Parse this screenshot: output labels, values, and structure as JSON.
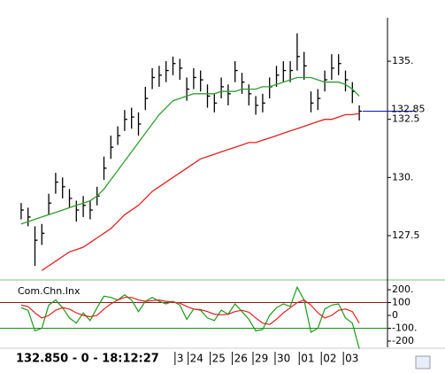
{
  "chart_data": [
    {
      "type": "hlc",
      "bars": {
        "color": "#000000",
        "high": [
          128.9,
          128.7,
          127.9,
          128.0,
          129.3,
          130.2,
          130.0,
          129.5,
          129.0,
          129.2,
          129.0,
          129.6,
          130.9,
          131.8,
          132.2,
          132.9,
          133.0,
          132.8,
          133.9,
          134.7,
          134.8,
          135.0,
          135.2,
          135.1,
          134.3,
          134.7,
          134.6,
          134.0,
          133.6,
          134.3,
          134.0,
          135.0,
          134.5,
          134.0,
          133.5,
          133.6,
          134.3,
          134.8,
          135.0,
          135.0,
          136.2,
          135.4,
          133.7,
          133.8,
          134.6,
          135.3,
          135.3,
          134.6,
          134.1,
          133.1
        ],
        "low": [
          128.2,
          127.9,
          126.2,
          127.1,
          128.4,
          129.3,
          129.1,
          128.7,
          128.1,
          128.3,
          128.2,
          128.8,
          129.9,
          130.8,
          131.4,
          132.0,
          132.1,
          131.8,
          132.9,
          133.8,
          133.9,
          134.1,
          134.4,
          134.2,
          133.3,
          133.8,
          133.7,
          133.0,
          132.8,
          133.4,
          133.1,
          134.1,
          133.6,
          133.1,
          132.7,
          132.8,
          133.4,
          133.9,
          134.1,
          134.1,
          134.6,
          134.2,
          132.8,
          132.9,
          133.7,
          134.2,
          134.4,
          133.7,
          133.2,
          132.45
        ],
        "close": [
          128.6,
          128.3,
          127.3,
          127.6,
          128.9,
          129.8,
          129.6,
          129.1,
          128.6,
          128.8,
          128.6,
          129.2,
          130.4,
          131.3,
          131.8,
          132.5,
          132.6,
          132.3,
          133.4,
          134.3,
          134.4,
          134.6,
          134.9,
          134.7,
          133.8,
          134.3,
          134.2,
          133.5,
          133.2,
          133.9,
          133.6,
          134.6,
          134.1,
          133.6,
          133.1,
          133.2,
          133.9,
          134.4,
          134.6,
          134.6,
          135.2,
          134.8,
          133.2,
          133.4,
          134.2,
          134.7,
          134.9,
          134.2,
          133.7,
          132.85
        ]
      },
      "lines": [
        {
          "color": "#2e9e2e",
          "values": [
            128.0,
            128.1,
            128.2,
            128.3,
            128.4,
            128.5,
            128.6,
            128.7,
            128.8,
            128.9,
            129.0,
            129.2,
            129.5,
            129.9,
            130.3,
            130.7,
            131.1,
            131.5,
            131.9,
            132.3,
            132.7,
            133.0,
            133.3,
            133.4,
            133.5,
            133.6,
            133.6,
            133.6,
            133.6,
            133.7,
            133.7,
            133.7,
            133.8,
            133.8,
            133.8,
            133.9,
            133.9,
            134.0,
            134.1,
            134.2,
            134.3,
            134.3,
            134.3,
            134.2,
            134.1,
            134.1,
            134.1,
            134.0,
            133.8,
            133.5
          ]
        },
        {
          "color": "#e02020",
          "values": [
            null,
            null,
            null,
            126.0,
            126.2,
            126.4,
            126.6,
            126.8,
            126.9,
            127.0,
            127.2,
            127.4,
            127.6,
            127.8,
            128.1,
            128.4,
            128.6,
            128.8,
            129.1,
            129.4,
            129.6,
            129.8,
            130.0,
            130.2,
            130.4,
            130.6,
            130.8,
            130.9,
            131.0,
            131.1,
            131.2,
            131.3,
            131.4,
            131.5,
            131.5,
            131.6,
            131.7,
            131.8,
            131.9,
            132.0,
            132.1,
            132.2,
            132.3,
            132.4,
            132.5,
            132.5,
            132.6,
            132.7,
            132.7,
            132.75
          ]
        }
      ],
      "ylim": [
        125.63,
        136.87
      ],
      "yticks": [
        {
          "value": 135,
          "label": "135."
        },
        132.5,
        {
          "value": 130,
          "label": "130."
        },
        127.5
      ],
      "last_price": {
        "value": 132.85,
        "label": "132.85",
        "color": "#1010c0"
      },
      "xlim": [
        0,
        50
      ],
      "xticks": [
        {
          "value": 23.7,
          "label": "3"
        },
        {
          "value": 25.6,
          "label": "24"
        },
        {
          "value": 28.8,
          "label": "25"
        },
        {
          "value": 32,
          "label": "26"
        },
        {
          "value": 35,
          "label": "29"
        },
        {
          "value": 38.2,
          "label": "30"
        },
        {
          "value": 41.7,
          "label": "01"
        },
        {
          "value": 44.9,
          "label": "02"
        },
        {
          "value": 48.1,
          "label": "03"
        }
      ]
    },
    {
      "type": "line",
      "title": "Com.Chn.Inx",
      "series": [
        {
          "color": "#1a9a1a",
          "values": [
            60,
            40,
            -120,
            -100,
            80,
            120,
            60,
            -20,
            -60,
            20,
            -40,
            60,
            150,
            140,
            120,
            160,
            120,
            30,
            110,
            140,
            110,
            90,
            110,
            80,
            -30,
            50,
            40,
            -20,
            -40,
            40,
            10,
            90,
            30,
            -30,
            -120,
            -110,
            0,
            60,
            90,
            70,
            220,
            120,
            -130,
            -100,
            50,
            80,
            90,
            -20,
            -60,
            -260
          ]
        },
        {
          "color": "#e02020",
          "values": [
            80,
            70,
            20,
            -20,
            0,
            40,
            60,
            50,
            20,
            0,
            -10,
            0,
            50,
            90,
            120,
            140,
            140,
            120,
            110,
            115,
            120,
            110,
            105,
            95,
            70,
            50,
            45,
            30,
            10,
            5,
            10,
            30,
            40,
            25,
            -20,
            -60,
            -70,
            -30,
            20,
            60,
            100,
            120,
            80,
            20,
            -20,
            0,
            40,
            50,
            30,
            -60
          ]
        }
      ],
      "levels": [
        {
          "value": 100,
          "color": "#8b1a1a"
        },
        {
          "value": -100,
          "color": "#1a8b1a"
        }
      ],
      "ylim": [
        -248,
        262
      ],
      "yticks": [
        {
          "value": 200,
          "label": "200."
        },
        100,
        0,
        {
          "value": -100,
          "label": "-100."
        },
        -200
      ]
    }
  ],
  "status_bar": {
    "text": "132.850 - 0 - 18:12:27"
  }
}
